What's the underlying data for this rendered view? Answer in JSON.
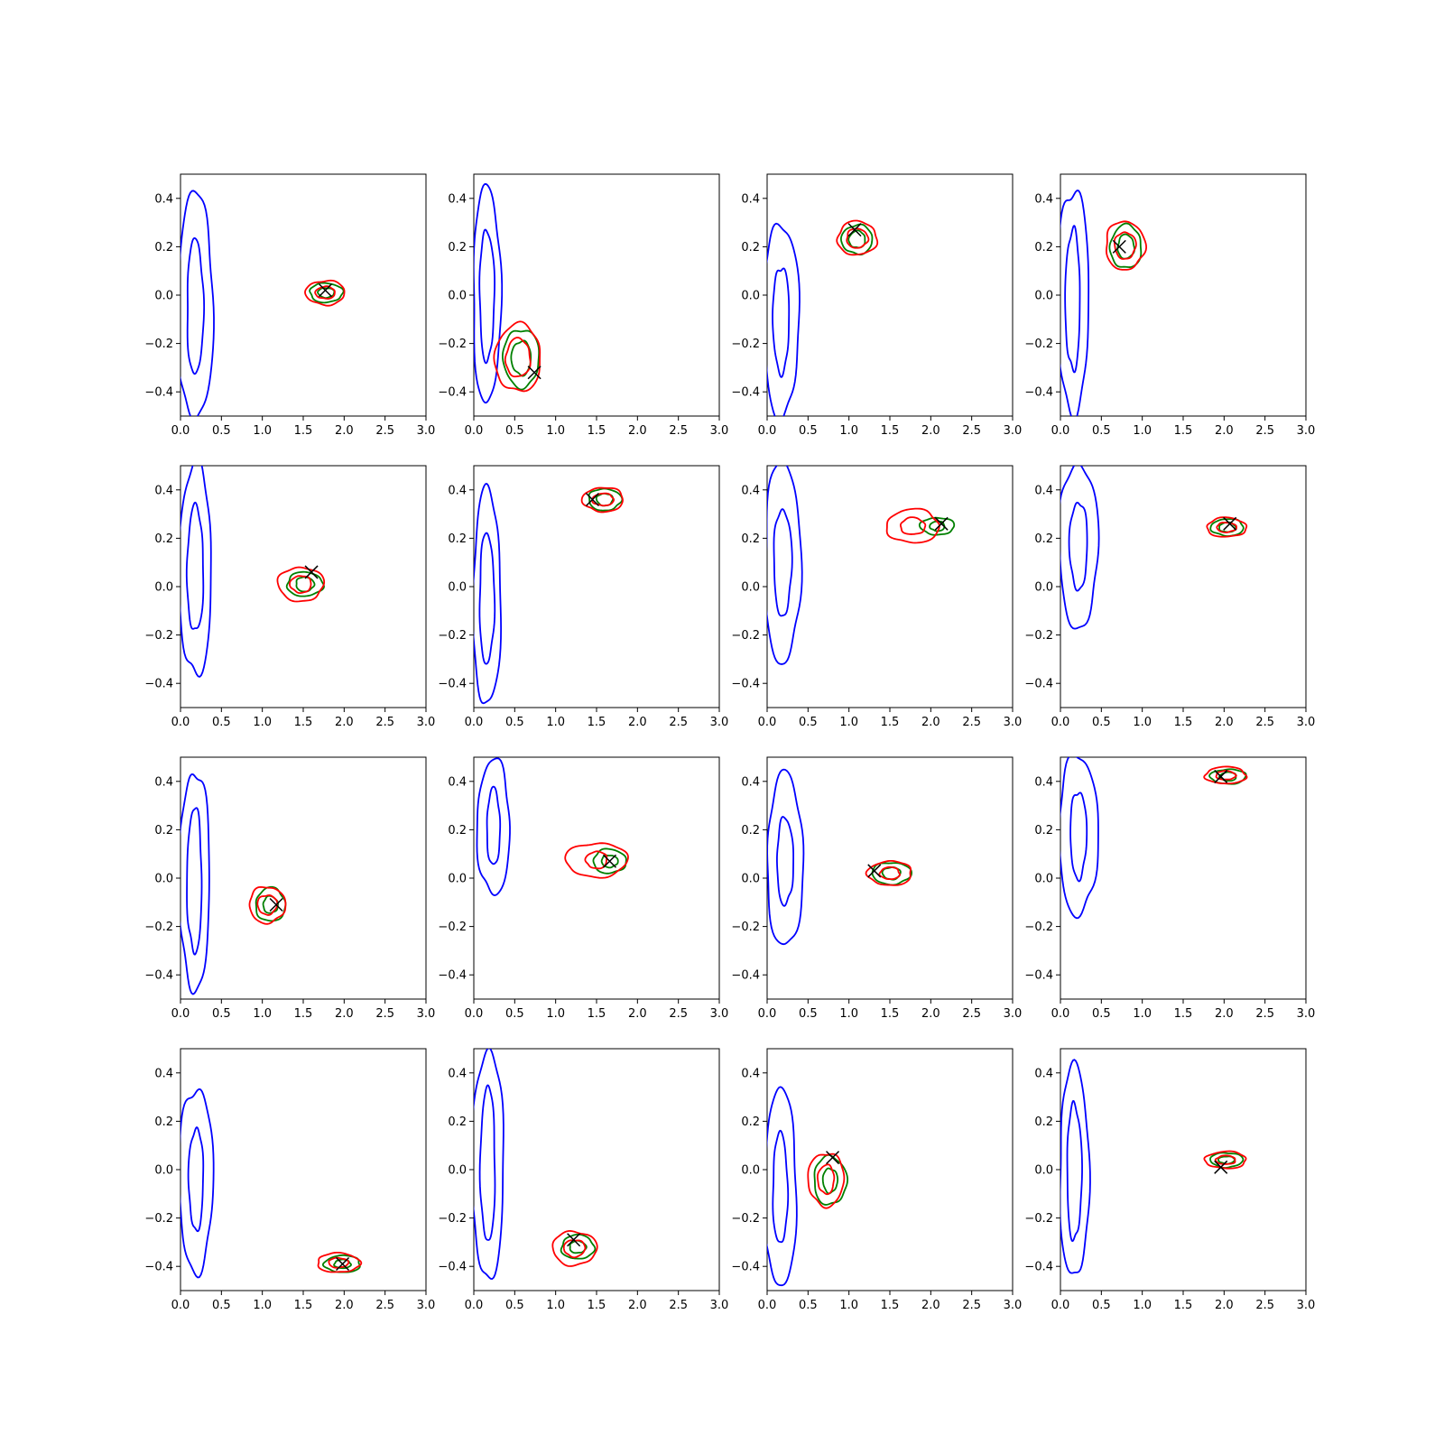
{
  "colors": {
    "blue_contours": "#0000ff",
    "green_contours": "#008000",
    "red_contours": "#ff0000",
    "marker": "#000000"
  },
  "chart_data": {
    "type": "contour",
    "grid": {
      "rows": 4,
      "cols": 4
    },
    "xlim": [
      0,
      3.0
    ],
    "ylim": [
      -0.5,
      0.5
    ],
    "xticks": [
      "0.0",
      "0.5",
      "1.0",
      "1.5",
      "2.0",
      "2.5",
      "3.0"
    ],
    "yticks": [
      "−0.4",
      "−0.2",
      "0.0",
      "0.2",
      "0.4"
    ],
    "xtick_values": [
      0,
      0.5,
      1.0,
      1.5,
      2.0,
      2.5,
      3.0
    ],
    "ytick_values": [
      -0.4,
      -0.2,
      0.0,
      0.2,
      0.4
    ],
    "panels": [
      {
        "blue": {
          "cx": 0.18,
          "cy": -0.05,
          "outer": [
            0.22,
            0.47
          ],
          "inner": [
            0.1,
            0.28
          ]
        },
        "green": {
          "cx": 1.78,
          "cy": 0.01,
          "outer": [
            0.2,
            0.04
          ],
          "inner": [
            0.1,
            0.02
          ]
        },
        "red": {
          "cx": 1.77,
          "cy": 0.01,
          "outer": [
            0.24,
            0.05
          ],
          "inner": [
            0.12,
            0.025
          ]
        },
        "marker": [
          1.77,
          0.02
        ]
      },
      {
        "blue": {
          "cx": 0.16,
          "cy": 0.0,
          "outer": [
            0.17,
            0.45
          ],
          "inner": [
            0.09,
            0.27
          ]
        },
        "green": {
          "cx": 0.58,
          "cy": -0.26,
          "outer": [
            0.22,
            0.12
          ],
          "inner": [
            0.12,
            0.07
          ]
        },
        "red": {
          "cx": 0.54,
          "cy": -0.26,
          "outer": [
            0.28,
            0.14
          ],
          "inner": [
            0.15,
            0.08
          ]
        },
        "marker": [
          0.74,
          -0.32
        ]
      },
      {
        "blue": {
          "cx": 0.17,
          "cy": -0.1,
          "outer": [
            0.22,
            0.4
          ],
          "inner": [
            0.1,
            0.22
          ]
        },
        "green": {
          "cx": 1.1,
          "cy": 0.23,
          "outer": [
            0.19,
            0.06
          ],
          "inner": [
            0.1,
            0.035
          ]
        },
        "red": {
          "cx": 1.1,
          "cy": 0.235,
          "outer": [
            0.24,
            0.07
          ],
          "inner": [
            0.13,
            0.04
          ]
        },
        "marker": [
          1.07,
          0.27
        ]
      },
      {
        "blue": {
          "cx": 0.15,
          "cy": -0.02,
          "outer": [
            0.2,
            0.46
          ],
          "inner": [
            0.09,
            0.29
          ]
        },
        "green": {
          "cx": 0.8,
          "cy": 0.2,
          "outer": [
            0.19,
            0.09
          ],
          "inner": [
            0.1,
            0.05
          ]
        },
        "red": {
          "cx": 0.79,
          "cy": 0.205,
          "outer": [
            0.24,
            0.1
          ],
          "inner": [
            0.13,
            0.055
          ]
        },
        "marker": [
          0.72,
          0.2
        ]
      },
      {
        "blue": {
          "cx": 0.18,
          "cy": 0.07,
          "outer": [
            0.2,
            0.44
          ],
          "inner": [
            0.1,
            0.26
          ]
        },
        "green": {
          "cx": 1.52,
          "cy": 0.01,
          "outer": [
            0.22,
            0.05
          ],
          "inner": [
            0.11,
            0.03
          ]
        },
        "red": {
          "cx": 1.47,
          "cy": 0.01,
          "outer": [
            0.28,
            0.07
          ],
          "inner": [
            0.13,
            0.035
          ]
        },
        "marker": [
          1.6,
          0.06
        ]
      },
      {
        "blue": {
          "cx": 0.16,
          "cy": -0.05,
          "outer": [
            0.17,
            0.45
          ],
          "inner": [
            0.09,
            0.27
          ]
        },
        "green": {
          "cx": 1.6,
          "cy": 0.36,
          "outer": [
            0.2,
            0.045
          ],
          "inner": [
            0.1,
            0.025
          ]
        },
        "red": {
          "cx": 1.58,
          "cy": 0.36,
          "outer": [
            0.25,
            0.05
          ],
          "inner": [
            0.13,
            0.025
          ]
        },
        "marker": [
          1.45,
          0.36
        ]
      },
      {
        "blue": {
          "cx": 0.19,
          "cy": 0.1,
          "outer": [
            0.22,
            0.42
          ],
          "inner": [
            0.11,
            0.22
          ]
        },
        "green": {
          "cx": 2.08,
          "cy": 0.25,
          "outer": [
            0.21,
            0.035
          ],
          "inner": [
            0.09,
            0.02
          ]
        },
        "red": {
          "cx": 1.78,
          "cy": 0.25,
          "outer": [
            0.32,
            0.07
          ],
          "inner": [
            0.15,
            0.035
          ]
        },
        "marker": [
          2.13,
          0.26
        ]
      },
      {
        "blue": {
          "cx": 0.22,
          "cy": 0.17,
          "outer": [
            0.24,
            0.34
          ],
          "inner": [
            0.11,
            0.18
          ]
        },
        "green": {
          "cx": 2.04,
          "cy": 0.245,
          "outer": [
            0.2,
            0.035
          ],
          "inner": [
            0.1,
            0.02
          ]
        },
        "red": {
          "cx": 2.03,
          "cy": 0.245,
          "outer": [
            0.24,
            0.04
          ],
          "inner": [
            0.12,
            0.02
          ]
        },
        "marker": [
          2.07,
          0.26
        ]
      },
      {
        "blue": {
          "cx": 0.17,
          "cy": -0.01,
          "outer": [
            0.19,
            0.45
          ],
          "inner": [
            0.09,
            0.3
          ]
        },
        "green": {
          "cx": 1.1,
          "cy": -0.11,
          "outer": [
            0.18,
            0.07
          ],
          "inner": [
            0.09,
            0.035
          ]
        },
        "red": {
          "cx": 1.06,
          "cy": -0.11,
          "outer": [
            0.22,
            0.075
          ],
          "inner": [
            0.12,
            0.04
          ]
        },
        "marker": [
          1.17,
          -0.11
        ]
      },
      {
        "blue": {
          "cx": 0.24,
          "cy": 0.21,
          "outer": [
            0.2,
            0.28
          ],
          "inner": [
            0.08,
            0.16
          ]
        },
        "green": {
          "cx": 1.66,
          "cy": 0.07,
          "outer": [
            0.2,
            0.05
          ],
          "inner": [
            0.1,
            0.025
          ]
        },
        "red": {
          "cx": 1.5,
          "cy": 0.075,
          "outer": [
            0.38,
            0.07
          ],
          "inner": [
            0.13,
            0.035
          ]
        },
        "marker": [
          1.66,
          0.07
        ]
      },
      {
        "blue": {
          "cx": 0.22,
          "cy": 0.07,
          "outer": [
            0.22,
            0.36
          ],
          "inner": [
            0.1,
            0.18
          ]
        },
        "green": {
          "cx": 1.52,
          "cy": 0.02,
          "outer": [
            0.24,
            0.045
          ],
          "inner": [
            0.11,
            0.025
          ]
        },
        "red": {
          "cx": 1.5,
          "cy": 0.02,
          "outer": [
            0.27,
            0.05
          ],
          "inner": [
            0.12,
            0.025
          ]
        },
        "marker": [
          1.31,
          0.03
        ]
      },
      {
        "blue": {
          "cx": 0.22,
          "cy": 0.18,
          "outer": [
            0.24,
            0.33
          ],
          "inner": [
            0.1,
            0.18
          ]
        },
        "green": {
          "cx": 2.05,
          "cy": 0.42,
          "outer": [
            0.22,
            0.03
          ],
          "inner": [
            0.1,
            0.018
          ]
        },
        "red": {
          "cx": 2.02,
          "cy": 0.425,
          "outer": [
            0.25,
            0.035
          ],
          "inner": [
            0.12,
            0.018
          ]
        },
        "marker": [
          1.96,
          0.42
        ]
      },
      {
        "blue": {
          "cx": 0.19,
          "cy": -0.04,
          "outer": [
            0.21,
            0.38
          ],
          "inner": [
            0.09,
            0.21
          ]
        },
        "green": {
          "cx": 1.98,
          "cy": -0.39,
          "outer": [
            0.22,
            0.035
          ],
          "inner": [
            0.1,
            0.018
          ]
        },
        "red": {
          "cx": 1.93,
          "cy": -0.385,
          "outer": [
            0.26,
            0.04
          ],
          "inner": [
            0.12,
            0.02
          ]
        },
        "marker": [
          1.98,
          -0.39
        ]
      },
      {
        "blue": {
          "cx": 0.17,
          "cy": 0.02,
          "outer": [
            0.2,
            0.47
          ],
          "inner": [
            0.09,
            0.32
          ]
        },
        "green": {
          "cx": 1.27,
          "cy": -0.32,
          "outer": [
            0.2,
            0.05
          ],
          "inner": [
            0.1,
            0.025
          ]
        },
        "red": {
          "cx": 1.23,
          "cy": -0.325,
          "outer": [
            0.27,
            0.07
          ],
          "inner": [
            0.13,
            0.035
          ]
        },
        "marker": [
          1.22,
          -0.29
        ]
      },
      {
        "blue": {
          "cx": 0.16,
          "cy": -0.08,
          "outer": [
            0.2,
            0.41
          ],
          "inner": [
            0.09,
            0.23
          ]
        },
        "green": {
          "cx": 0.77,
          "cy": -0.045,
          "outer": [
            0.2,
            0.1
          ],
          "inner": [
            0.09,
            0.05
          ]
        },
        "red": {
          "cx": 0.72,
          "cy": -0.04,
          "outer": [
            0.22,
            0.11
          ],
          "inner": [
            0.1,
            0.06
          ]
        },
        "marker": [
          0.8,
          0.05
        ]
      },
      {
        "blue": {
          "cx": 0.17,
          "cy": -0.01,
          "outer": [
            0.18,
            0.44
          ],
          "inner": [
            0.09,
            0.28
          ]
        },
        "green": {
          "cx": 2.03,
          "cy": 0.04,
          "outer": [
            0.2,
            0.03
          ],
          "inner": [
            0.1,
            0.015
          ]
        },
        "red": {
          "cx": 2.02,
          "cy": 0.04,
          "outer": [
            0.25,
            0.035
          ],
          "inner": [
            0.12,
            0.018
          ]
        },
        "marker": [
          1.96,
          0.01
        ]
      }
    ]
  }
}
